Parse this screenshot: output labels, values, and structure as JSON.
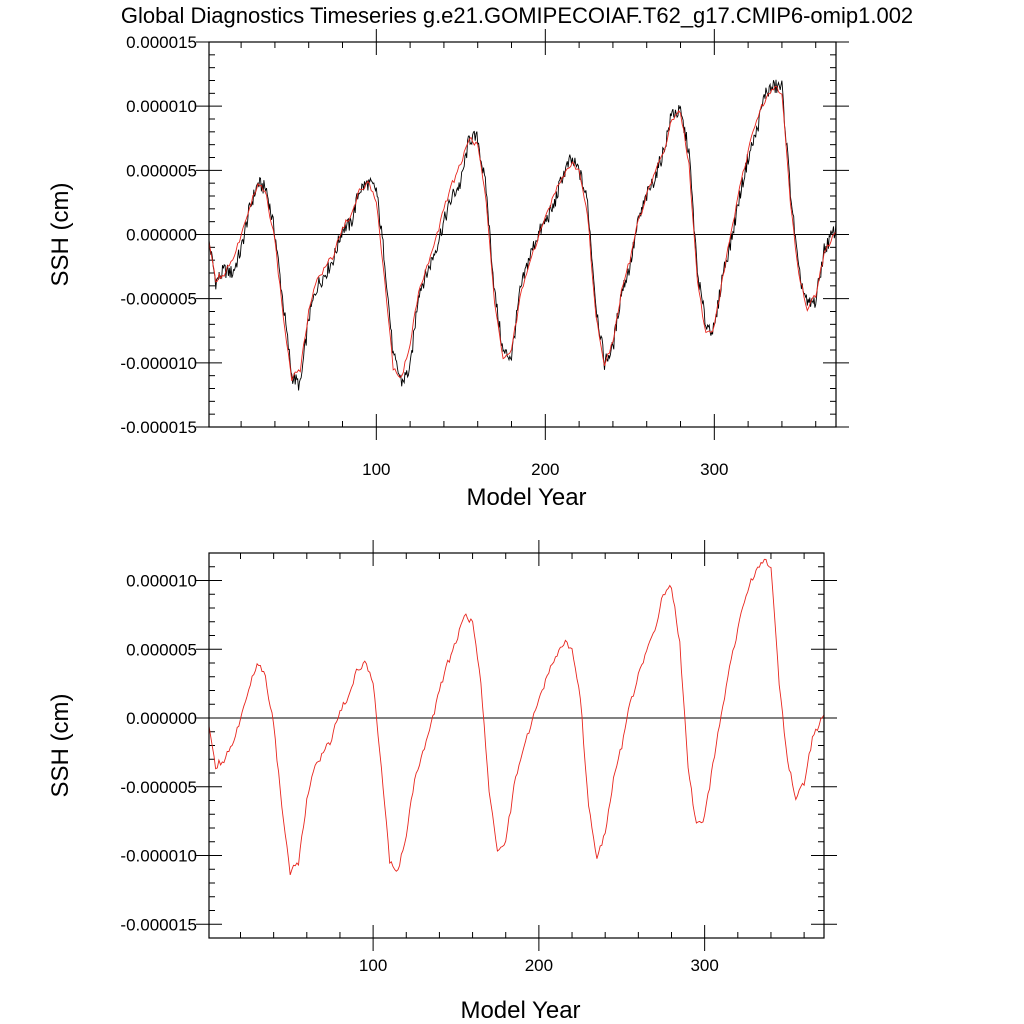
{
  "title": "Global Diagnostics Timeseries g.e21.GOMIPECOIAF.T62_g17.CMIP6-omip1.002",
  "colors": {
    "raw": "#000000",
    "smooth": "#e8261e",
    "axis": "#000000",
    "zero": "#000000"
  },
  "chart_data": [
    {
      "type": "line",
      "xlabel": "Model Year",
      "ylabel": "SSH (cm)",
      "xlim": [
        1,
        372
      ],
      "ylim": [
        -1.5e-05,
        1.5e-05
      ],
      "x_ticks": [
        100,
        200,
        300
      ],
      "x_tick_labels": [
        "100",
        "200",
        "300"
      ],
      "y_ticks": [
        -1.5e-05,
        -1e-05,
        -5e-06,
        0,
        5e-06,
        1e-05,
        1.5e-05
      ],
      "y_tick_labels": [
        "-0.000015",
        "-0.000010",
        "-0.000005",
        "0.000000",
        "0.000005",
        "0.000010",
        "0.000015"
      ],
      "reference_line": 0,
      "series": [
        {
          "style": "raw-black",
          "x": [
            1,
            5,
            10,
            15,
            20,
            25,
            30,
            35,
            40,
            45,
            50,
            55,
            60,
            65,
            70,
            75,
            80,
            85,
            90,
            95,
            100,
            105,
            110,
            115,
            120,
            125,
            130,
            135,
            140,
            145,
            150,
            155,
            160,
            165,
            170,
            175,
            180,
            185,
            190,
            195,
            200,
            205,
            210,
            215,
            220,
            225,
            230,
            235,
            240,
            245,
            250,
            255,
            260,
            265,
            270,
            275,
            280,
            285,
            290,
            295,
            300,
            305,
            310,
            315,
            320,
            325,
            330,
            335,
            340,
            345,
            350,
            355,
            360,
            365,
            372
          ],
          "values": [
            -5e-07,
            -3.7e-06,
            -2.8e-06,
            -3e-06,
            -1.2e-06,
            2e-06,
            4e-06,
            3.5e-06,
            1e-07,
            -5.5e-06,
            -1.1e-05,
            -1.18e-05,
            -6.5e-06,
            -4e-06,
            -3e-06,
            -1.8e-06,
            5e-07,
            8e-07,
            3.5e-06,
            4e-06,
            3.5e-06,
            -2e-06,
            -9.5e-06,
            -1.15e-05,
            -1.05e-05,
            -4.5e-06,
            -3e-06,
            -1.2e-06,
            1e-06,
            3e-06,
            4e-06,
            7.5e-06,
            7.5e-06,
            3.5e-06,
            -4.5e-06,
            -9.2e-06,
            -9.5e-06,
            -4.5e-06,
            -2e-06,
            -2e-07,
            1e-06,
            2.2e-06,
            4.5e-06,
            5.8e-06,
            5e-06,
            2.5e-06,
            -5.5e-06,
            -1e-05,
            -8.8e-06,
            -4.5e-06,
            -2.5e-06,
            1e-06,
            3e-06,
            4.5e-06,
            6.5e-06,
            9.5e-06,
            9.5e-06,
            6.5e-06,
            -3e-06,
            -7e-06,
            -7.5e-06,
            -3e-06,
            -5e-07,
            3e-06,
            6e-06,
            8e-06,
            1.1e-05,
            1.15e-05,
            1.15e-05,
            3.5e-06,
            -3e-06,
            -5.5e-06,
            -5.2e-06,
            -1.2e-06,
            5e-07
          ]
        },
        {
          "style": "smooth-red",
          "x": [
            1,
            5,
            10,
            15,
            20,
            25,
            30,
            35,
            40,
            45,
            50,
            55,
            60,
            65,
            70,
            75,
            80,
            85,
            90,
            95,
            100,
            105,
            110,
            115,
            120,
            125,
            130,
            135,
            140,
            145,
            150,
            155,
            160,
            165,
            170,
            175,
            180,
            185,
            190,
            195,
            200,
            205,
            210,
            215,
            220,
            225,
            230,
            235,
            240,
            245,
            250,
            255,
            260,
            265,
            270,
            275,
            280,
            285,
            290,
            295,
            300,
            305,
            310,
            315,
            320,
            325,
            330,
            335,
            340,
            345,
            350,
            355,
            360,
            365,
            372
          ],
          "values": [
            -8e-07,
            -3.5e-06,
            -3e-06,
            -2e-06,
            -2e-07,
            2e-06,
            4e-06,
            3e-06,
            -5e-07,
            -6.5e-06,
            -1.12e-05,
            -1.05e-05,
            -6e-06,
            -3.5e-06,
            -2.5e-06,
            -1.5e-06,
            5e-07,
            1.5e-06,
            3.5e-06,
            4e-06,
            2.5e-06,
            -3.5e-06,
            -1.05e-05,
            -1.12e-05,
            -8.5e-06,
            -4.5e-06,
            -2.5e-06,
            -5e-07,
            2e-06,
            4e-06,
            5.5e-06,
            7.5e-06,
            7e-06,
            2.5e-06,
            -5.5e-06,
            -9.5e-06,
            -9e-06,
            -5e-06,
            -2.5e-06,
            -5e-07,
            1.5e-06,
            3e-06,
            4.5e-06,
            5.5e-06,
            5e-06,
            1.5e-06,
            -6.5e-06,
            -1e-05,
            -8.5e-06,
            -4.5e-06,
            -2e-06,
            1e-06,
            3e-06,
            5e-06,
            6.5e-06,
            9e-06,
            9.5e-06,
            5.5e-06,
            -3.5e-06,
            -7.8e-06,
            -7.2e-06,
            -3.5e-06,
            2e-07,
            3.5e-06,
            6.5e-06,
            9e-06,
            1.05e-05,
            1.15e-05,
            1.1e-05,
            2.5e-06,
            -3e-06,
            -5.8e-06,
            -4.8e-06,
            -1.5e-06,
            2e-07
          ]
        }
      ]
    },
    {
      "type": "line",
      "xlabel": "Model Year",
      "ylabel": "SSH (cm)",
      "xlim": [
        1,
        372
      ],
      "ylim": [
        -1.6e-05,
        1.2e-05
      ],
      "x_ticks": [
        100,
        200,
        300
      ],
      "x_tick_labels": [
        "100",
        "200",
        "300"
      ],
      "y_ticks": [
        -1.5e-05,
        -1e-05,
        -5e-06,
        0,
        5e-06,
        1e-05
      ],
      "y_tick_labels": [
        "-0.000015",
        "-0.000010",
        "-0.000005",
        "0.000000",
        "0.000005",
        "0.000010"
      ],
      "reference_line": 0,
      "series": [
        {
          "style": "smooth-red",
          "x": [
            1,
            5,
            10,
            15,
            20,
            25,
            30,
            35,
            40,
            45,
            50,
            55,
            60,
            65,
            70,
            75,
            80,
            85,
            90,
            95,
            100,
            105,
            110,
            115,
            120,
            125,
            130,
            135,
            140,
            145,
            150,
            155,
            160,
            165,
            170,
            175,
            180,
            185,
            190,
            195,
            200,
            205,
            210,
            215,
            220,
            225,
            230,
            235,
            240,
            245,
            250,
            255,
            260,
            265,
            270,
            275,
            280,
            285,
            290,
            295,
            300,
            305,
            310,
            315,
            320,
            325,
            330,
            335,
            340,
            345,
            350,
            355,
            360,
            365,
            372
          ],
          "values": [
            -8e-07,
            -3.5e-06,
            -3e-06,
            -2e-06,
            -2e-07,
            2e-06,
            4e-06,
            3e-06,
            -5e-07,
            -6.5e-06,
            -1.12e-05,
            -1.05e-05,
            -6e-06,
            -3.5e-06,
            -2.5e-06,
            -1.5e-06,
            5e-07,
            1.5e-06,
            3.5e-06,
            4e-06,
            2.5e-06,
            -3.5e-06,
            -1.05e-05,
            -1.12e-05,
            -8.5e-06,
            -4.5e-06,
            -2.5e-06,
            -5e-07,
            2e-06,
            4e-06,
            5.5e-06,
            7.5e-06,
            7e-06,
            2.5e-06,
            -5.5e-06,
            -9.5e-06,
            -9e-06,
            -5e-06,
            -2.5e-06,
            -5e-07,
            1.5e-06,
            3e-06,
            4.5e-06,
            5.5e-06,
            5e-06,
            1.5e-06,
            -6.5e-06,
            -1e-05,
            -8.5e-06,
            -4.5e-06,
            -2e-06,
            1e-06,
            3e-06,
            5e-06,
            6.5e-06,
            9e-06,
            9.5e-06,
            5.5e-06,
            -3.5e-06,
            -7.8e-06,
            -7.2e-06,
            -3.5e-06,
            2e-07,
            3.5e-06,
            6.5e-06,
            9e-06,
            1.05e-05,
            1.15e-05,
            1.1e-05,
            2.5e-06,
            -3e-06,
            -5.8e-06,
            -4.8e-06,
            -1.5e-06,
            2e-07
          ]
        }
      ]
    }
  ]
}
